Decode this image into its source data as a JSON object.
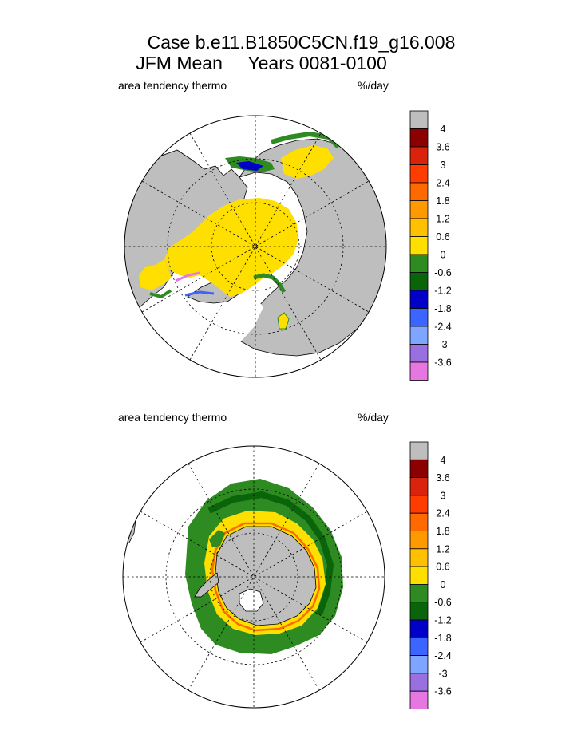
{
  "title": {
    "line1": "Case b.e11.B1850C5CN.f19_g16.008",
    "line2": "JFM Mean     Years 0081-0100"
  },
  "chart_data": [
    {
      "type": "heatmap",
      "projection": "north polar stereographic",
      "hemisphere": "Northern Hemisphere",
      "variable_label": "area tendency thermo",
      "units": "%/day",
      "colorbar": {
        "levels": [
          "4",
          "3.6",
          "3",
          "2.4",
          "1.8",
          "1.2",
          "0.6",
          "0",
          "-0.6",
          "-1.2",
          "-1.8",
          "-2.4",
          "-3",
          "-3.6"
        ],
        "colors": [
          "#bebebe",
          "#8b0000",
          "#d9230d",
          "#ff3d00",
          "#ff6a00",
          "#ff9900",
          "#ffc000",
          "#ffdf00",
          "#2e8b22",
          "#0a640a",
          "#0000c8",
          "#3c64ff",
          "#7ea5ff",
          "#9a6fe0",
          "#e677e0"
        ]
      }
    },
    {
      "type": "heatmap",
      "projection": "south polar stereographic",
      "hemisphere": "Southern Hemisphere",
      "variable_label": "area tendency thermo",
      "units": "%/day",
      "colorbar": {
        "levels": [
          "4",
          "3.6",
          "3",
          "2.4",
          "1.8",
          "1.2",
          "0.6",
          "0",
          "-0.6",
          "-1.2",
          "-1.8",
          "-2.4",
          "-3",
          "-3.6"
        ],
        "colors": [
          "#bebebe",
          "#8b0000",
          "#d9230d",
          "#ff3d00",
          "#ff6a00",
          "#ff9900",
          "#ffc000",
          "#ffdf00",
          "#2e8b22",
          "#0a640a",
          "#0000c8",
          "#3c64ff",
          "#7ea5ff",
          "#9a6fe0",
          "#e677e0"
        ]
      }
    }
  ]
}
